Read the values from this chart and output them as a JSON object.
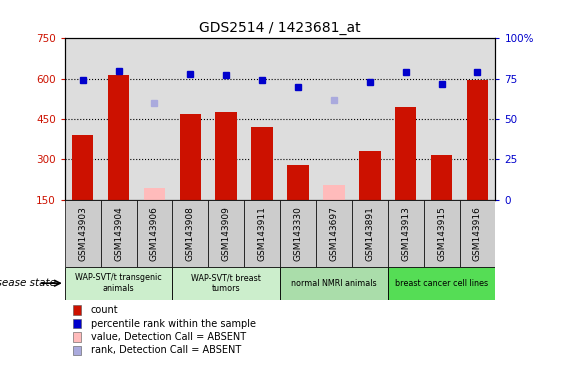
{
  "title": "GDS2514 / 1423681_at",
  "samples": [
    "GSM143903",
    "GSM143904",
    "GSM143906",
    "GSM143908",
    "GSM143909",
    "GSM143911",
    "GSM143330",
    "GSM143697",
    "GSM143891",
    "GSM143913",
    "GSM143915",
    "GSM143916"
  ],
  "count_values": [
    390,
    615,
    null,
    470,
    475,
    420,
    280,
    null,
    330,
    495,
    315,
    595
  ],
  "count_absent": [
    null,
    null,
    195,
    null,
    null,
    null,
    null,
    205,
    null,
    null,
    null,
    null
  ],
  "rank_values": [
    74,
    80,
    null,
    78,
    77,
    74,
    70,
    null,
    73,
    79,
    72,
    79
  ],
  "rank_absent": [
    null,
    null,
    60,
    null,
    null,
    null,
    null,
    62,
    null,
    null,
    null,
    null
  ],
  "group_defs": [
    {
      "label": "WAP-SVT/t transgenic\nanimals",
      "start": 0,
      "end": 3,
      "color": "#cceecc"
    },
    {
      "label": "WAP-SVT/t breast\ntumors",
      "start": 3,
      "end": 6,
      "color": "#cceecc"
    },
    {
      "label": "normal NMRI animals",
      "start": 6,
      "end": 9,
      "color": "#aaddaa"
    },
    {
      "label": "breast cancer cell lines",
      "start": 9,
      "end": 12,
      "color": "#55dd55"
    }
  ],
  "ylim_left": [
    150,
    750
  ],
  "ylim_right": [
    0,
    100
  ],
  "yticks_left": [
    150,
    300,
    450,
    600,
    750
  ],
  "yticks_right": [
    0,
    25,
    50,
    75,
    100
  ],
  "bar_color": "#cc1100",
  "bar_absent_color": "#ffbbbb",
  "rank_color": "#0000cc",
  "rank_absent_color": "#aaaadd",
  "plot_bg": "#dddddd",
  "xtick_bg": "#cccccc",
  "legend_items": [
    {
      "label": "count",
      "color": "#cc1100"
    },
    {
      "label": "percentile rank within the sample",
      "color": "#0000cc"
    },
    {
      "label": "value, Detection Call = ABSENT",
      "color": "#ffbbbb"
    },
    {
      "label": "rank, Detection Call = ABSENT",
      "color": "#aaaadd"
    }
  ]
}
